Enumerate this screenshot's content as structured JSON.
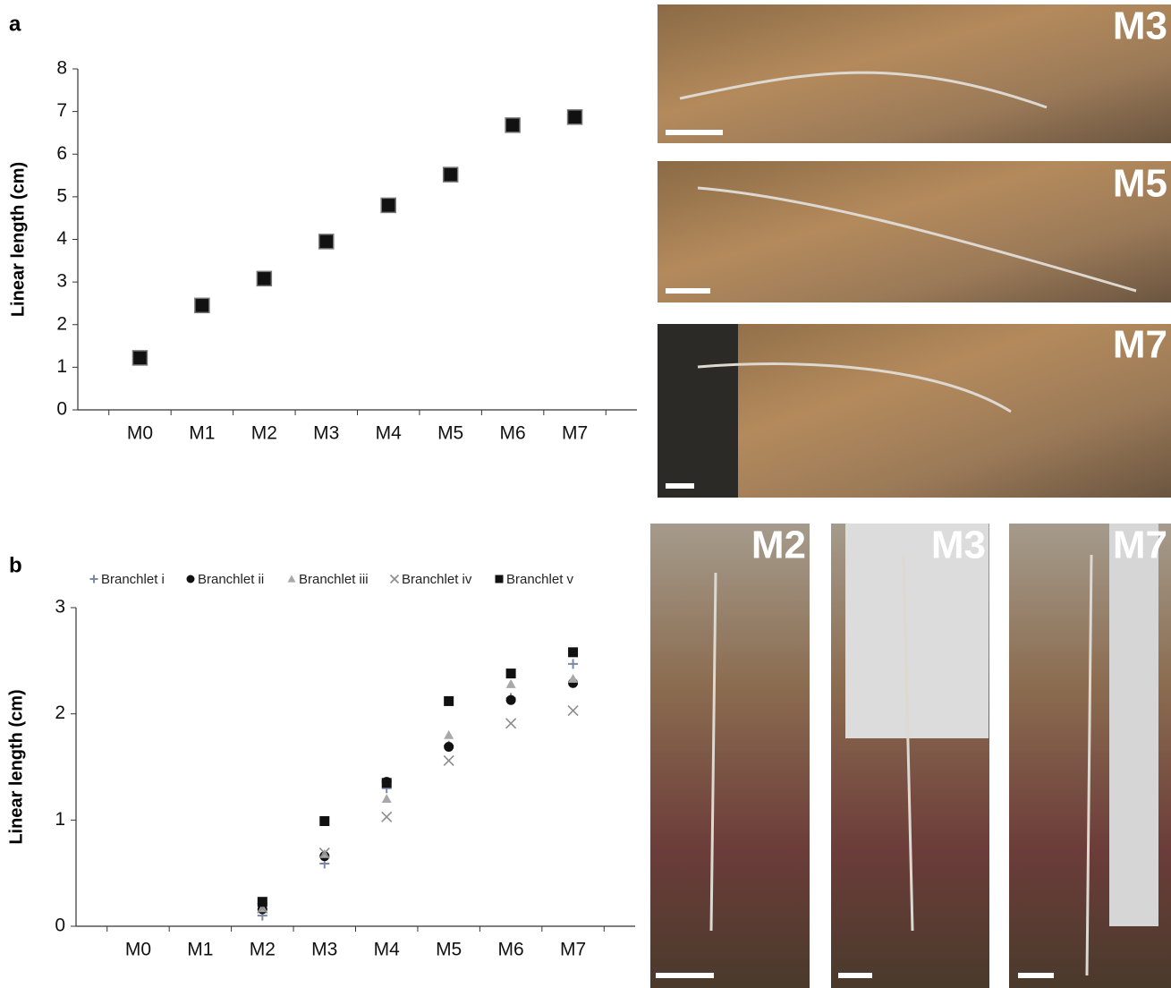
{
  "panel_labels": [
    "a",
    "b"
  ],
  "photo_labels": [
    "M3",
    "M5",
    "M7",
    "M2",
    "M3",
    "M7"
  ],
  "chart_data": [
    {
      "type": "scatter",
      "ylabel": "Linear length (cm)",
      "categories": [
        "M0",
        "M1",
        "M2",
        "M3",
        "M4",
        "M5",
        "M6",
        "M7"
      ],
      "series": [
        {
          "color": "#111111",
          "marker": "square",
          "values": [
            1.22,
            2.45,
            3.08,
            3.95,
            4.8,
            5.52,
            6.68,
            6.87
          ]
        }
      ],
      "ylim": [
        0,
        8
      ],
      "yticks": [
        0,
        1,
        2,
        3,
        4,
        5,
        6,
        7,
        8
      ]
    },
    {
      "type": "scatter",
      "ylabel": "Linear length (cm)",
      "legend": "top",
      "categories": [
        "M0",
        "M1",
        "M2",
        "M3",
        "M4",
        "M5",
        "M6",
        "M7"
      ],
      "series": [
        {
          "name": "Branchlet i",
          "color": "#7a88a4",
          "marker": "plus",
          "values": [
            null,
            null,
            0.1,
            0.59,
            1.3,
            1.7,
            2.15,
            2.47
          ]
        },
        {
          "name": "Branchlet ii",
          "color": "#111111",
          "marker": "circle",
          "values": [
            null,
            null,
            0.16,
            0.66,
            1.36,
            1.69,
            2.13,
            2.29
          ]
        },
        {
          "name": "Branchlet iii",
          "color": "#a8a8a8",
          "marker": "triangle",
          "values": [
            null,
            null,
            0.17,
            0.68,
            1.2,
            1.8,
            2.28,
            2.33
          ]
        },
        {
          "name": "Branchlet iv",
          "color": "#8c8c8c",
          "marker": "x",
          "values": [
            null,
            null,
            0.17,
            0.69,
            1.03,
            1.56,
            1.91,
            2.03
          ]
        },
        {
          "name": "Branchlet v",
          "color": "#111111",
          "marker": "square",
          "values": [
            null,
            null,
            0.23,
            0.99,
            1.35,
            2.12,
            2.38,
            2.58
          ]
        }
      ],
      "ylim": [
        0,
        3
      ],
      "yticks": [
        0,
        1,
        2,
        3
      ]
    }
  ]
}
